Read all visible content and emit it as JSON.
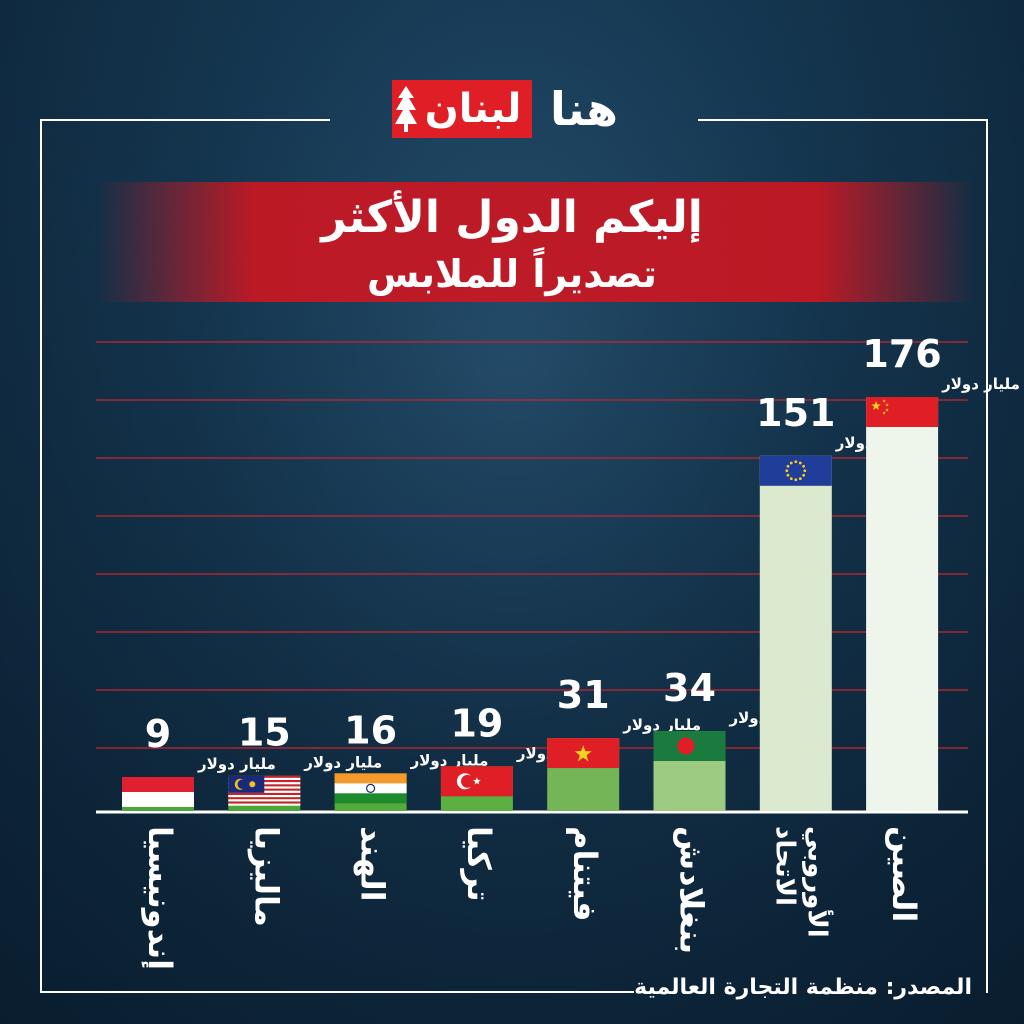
{
  "brand": {
    "logo_red_text": "لبنان",
    "logo_white_text": "هنا",
    "accent": "#e01e25"
  },
  "title": {
    "line1": "إليكم الدول الأكثر",
    "line2": "تصديراً للملابس"
  },
  "source": "المصدر: منظمة التجارة العالمية",
  "chart_data": {
    "type": "bar",
    "categories": [
      "إندونيسيا",
      "ماليزيا",
      "الهند",
      "تركيا",
      "فيتنام",
      "بنغلادش",
      "الاتحاد الأوروبي",
      "الصين"
    ],
    "values": [
      9,
      15,
      16,
      19,
      31,
      34,
      151,
      176
    ],
    "value_labels": [
      "9",
      "15",
      "16",
      "19",
      "31",
      "34",
      "151",
      "176"
    ],
    "unit_label": "مليار دولار",
    "flags": [
      "indonesia-flag-icon",
      "malaysia-flag-icon",
      "india-flag-icon",
      "turkey-flag-icon",
      "vietnam-flag-icon",
      "bangladesh-flag-icon",
      "eu-flag-icon",
      "china-flag-icon"
    ],
    "bar_colors": [
      "#4fa537",
      "#4fa537",
      "#56a93b",
      "#5caf40",
      "#74b657",
      "#9ccb81",
      "#dbe9cf",
      "#eef5ea"
    ],
    "grid": true,
    "legend": "none"
  }
}
